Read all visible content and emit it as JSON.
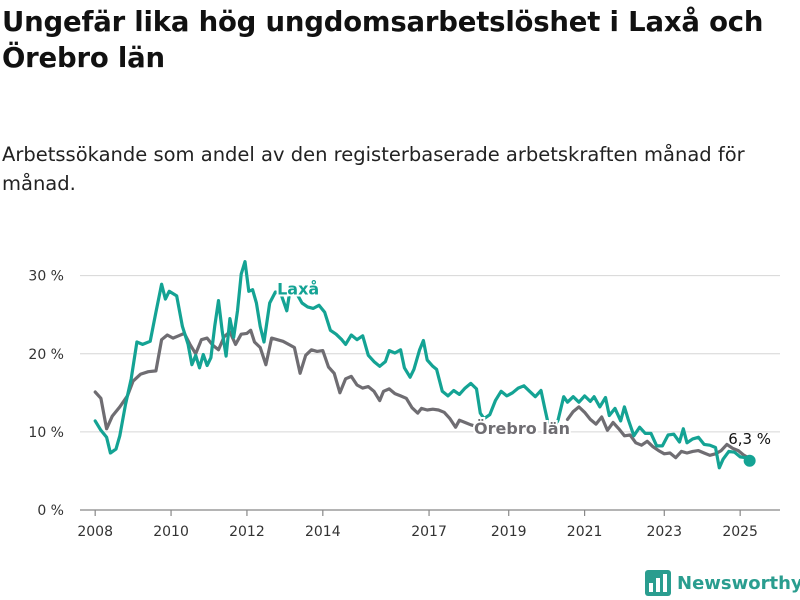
{
  "header": {
    "title": "Ungefär lika hög ungdomsarbetslöshet i Laxå och Örebro län",
    "subtitle": "Arbetssökande som andel av den registerbaserade arbetskraften månad för månad."
  },
  "brand": {
    "name": "Newsworthy",
    "icon": "bar-chart-logo-icon",
    "color": "#2a9d8f"
  },
  "chart_data": {
    "type": "line",
    "title": "Ungefär lika hög ungdomsarbetslöshet i Laxå och Örebro län",
    "subtitle": "Arbetssökande som andel av den registerbaserade arbetskraften månad för månad.",
    "xlabel": "",
    "ylabel": "",
    "xlim": [
      2007.6,
      2026.05
    ],
    "ylim": [
      0,
      32
    ],
    "grid": true,
    "legend": "none",
    "x_ticks": [
      "2008",
      "2010",
      "2012",
      "2014",
      "2017",
      "2019",
      "2021",
      "2023",
      "2025"
    ],
    "x_tick_values": [
      2008,
      2010,
      2012,
      2014,
      2016.8,
      2018.9,
      2020.9,
      2023,
      2025
    ],
    "y_ticks": [
      "0 %",
      "10 %",
      "20 %",
      "30 %"
    ],
    "y_tick_values": [
      0,
      10,
      20,
      30
    ],
    "series": [
      {
        "name": "Laxå",
        "color": "#14a394",
        "label": "Laxå",
        "label_at": [
          2013.35,
          27.6
        ],
        "points": [
          [
            2008.0,
            11.4
          ],
          [
            2008.15,
            10.2
          ],
          [
            2008.3,
            9.3
          ],
          [
            2008.4,
            7.3
          ],
          [
            2008.55,
            7.8
          ],
          [
            2008.65,
            9.5
          ],
          [
            2008.8,
            13.5
          ],
          [
            2008.95,
            16.8
          ],
          [
            2009.1,
            21.5
          ],
          [
            2009.25,
            21.2
          ],
          [
            2009.45,
            21.6
          ],
          [
            2009.6,
            25.3
          ],
          [
            2009.75,
            28.9
          ],
          [
            2009.85,
            27.0
          ],
          [
            2009.95,
            28.0
          ],
          [
            2010.15,
            27.4
          ],
          [
            2010.3,
            23.5
          ],
          [
            2010.45,
            21.2
          ],
          [
            2010.55,
            18.6
          ],
          [
            2010.65,
            19.8
          ],
          [
            2010.75,
            18.2
          ],
          [
            2010.85,
            19.9
          ],
          [
            2010.95,
            18.5
          ],
          [
            2011.05,
            19.5
          ],
          [
            2011.15,
            23.5
          ],
          [
            2011.25,
            26.8
          ],
          [
            2011.35,
            22.8
          ],
          [
            2011.45,
            19.7
          ],
          [
            2011.55,
            24.5
          ],
          [
            2011.65,
            22.1
          ],
          [
            2011.75,
            25.5
          ],
          [
            2011.85,
            30.2
          ],
          [
            2011.95,
            31.8
          ],
          [
            2012.05,
            28.0
          ],
          [
            2012.15,
            28.2
          ],
          [
            2012.25,
            26.5
          ],
          [
            2012.35,
            23.5
          ],
          [
            2012.45,
            21.5
          ],
          [
            2012.6,
            26.5
          ],
          [
            2012.75,
            27.9
          ],
          [
            2012.9,
            27.6
          ],
          [
            2013.05,
            25.5
          ],
          [
            2013.15,
            28.6
          ],
          [
            2013.3,
            27.8
          ],
          [
            2013.45,
            26.5
          ],
          [
            2013.6,
            26.0
          ],
          [
            2013.75,
            25.8
          ],
          [
            2013.9,
            26.2
          ],
          [
            2014.05,
            25.3
          ],
          [
            2014.2,
            23.0
          ],
          [
            2014.35,
            22.5
          ],
          [
            2014.5,
            21.8
          ],
          [
            2014.6,
            21.2
          ],
          [
            2014.75,
            22.4
          ],
          [
            2014.9,
            21.8
          ],
          [
            2015.05,
            22.3
          ],
          [
            2015.2,
            19.8
          ],
          [
            2015.35,
            19.0
          ],
          [
            2015.5,
            18.4
          ],
          [
            2015.65,
            19.0
          ],
          [
            2015.75,
            20.4
          ],
          [
            2015.9,
            20.1
          ],
          [
            2016.05,
            20.5
          ],
          [
            2016.15,
            18.2
          ],
          [
            2016.3,
            17.0
          ],
          [
            2016.4,
            18.0
          ],
          [
            2016.55,
            20.5
          ],
          [
            2016.65,
            21.7
          ],
          [
            2016.75,
            19.2
          ],
          [
            2016.9,
            18.4
          ],
          [
            2017.0,
            18.0
          ],
          [
            2017.15,
            15.2
          ],
          [
            2017.3,
            14.6
          ],
          [
            2017.45,
            15.3
          ],
          [
            2017.6,
            14.8
          ],
          [
            2017.75,
            15.6
          ],
          [
            2017.9,
            16.2
          ],
          [
            2018.05,
            15.5
          ],
          [
            2018.15,
            12.4
          ],
          [
            2018.25,
            11.7
          ],
          [
            2018.4,
            12.2
          ],
          [
            2018.55,
            14.0
          ],
          [
            2018.7,
            15.2
          ],
          [
            2018.85,
            14.6
          ],
          [
            2019.0,
            15.0
          ],
          [
            2019.15,
            15.6
          ],
          [
            2019.3,
            15.9
          ],
          [
            2019.45,
            15.2
          ],
          [
            2019.6,
            14.5
          ],
          [
            2019.75,
            15.3
          ],
          [
            2019.85,
            13.0
          ],
          [
            2019.95,
            10.8
          ],
          [
            2020.1,
            10.5
          ],
          [
            2020.2,
            11.5
          ],
          [
            2020.35,
            14.5
          ],
          [
            2020.45,
            13.8
          ],
          [
            2020.6,
            14.5
          ],
          [
            2020.75,
            13.8
          ],
          [
            2020.9,
            14.6
          ],
          [
            2021.05,
            13.9
          ],
          [
            2021.15,
            14.5
          ],
          [
            2021.3,
            13.2
          ],
          [
            2021.45,
            14.4
          ],
          [
            2021.55,
            12.1
          ],
          [
            2021.7,
            13.0
          ],
          [
            2021.85,
            11.4
          ],
          [
            2021.95,
            13.2
          ],
          [
            2022.05,
            11.6
          ],
          [
            2022.2,
            9.5
          ],
          [
            2022.35,
            10.6
          ],
          [
            2022.5,
            9.8
          ],
          [
            2022.65,
            9.8
          ],
          [
            2022.8,
            8.2
          ],
          [
            2022.95,
            8.2
          ],
          [
            2023.1,
            9.6
          ],
          [
            2023.25,
            9.7
          ],
          [
            2023.4,
            8.7
          ],
          [
            2023.5,
            10.4
          ],
          [
            2023.6,
            8.6
          ],
          [
            2023.75,
            9.1
          ],
          [
            2023.9,
            9.3
          ],
          [
            2024.05,
            8.4
          ],
          [
            2024.2,
            8.3
          ],
          [
            2024.35,
            8.0
          ],
          [
            2024.45,
            5.4
          ],
          [
            2024.55,
            6.5
          ],
          [
            2024.7,
            7.5
          ],
          [
            2024.85,
            7.4
          ],
          [
            2025.0,
            6.8
          ],
          [
            2025.15,
            6.7
          ],
          [
            2025.25,
            6.3
          ]
        ]
      },
      {
        "name": "Örebro län",
        "color": "#6f6d72",
        "label": "Örebro län",
        "label_at": [
          2019.25,
          9.7
        ],
        "points": [
          [
            2008.0,
            15.1
          ],
          [
            2008.15,
            14.3
          ],
          [
            2008.3,
            10.4
          ],
          [
            2008.45,
            12.0
          ],
          [
            2008.65,
            13.2
          ],
          [
            2008.85,
            14.6
          ],
          [
            2009.0,
            16.5
          ],
          [
            2009.2,
            17.4
          ],
          [
            2009.4,
            17.7
          ],
          [
            2009.6,
            17.8
          ],
          [
            2009.75,
            21.8
          ],
          [
            2009.9,
            22.4
          ],
          [
            2010.05,
            22.0
          ],
          [
            2010.2,
            22.3
          ],
          [
            2010.35,
            22.6
          ],
          [
            2010.5,
            21.2
          ],
          [
            2010.65,
            20.0
          ],
          [
            2010.8,
            21.8
          ],
          [
            2010.95,
            22.0
          ],
          [
            2011.1,
            21.1
          ],
          [
            2011.25,
            20.5
          ],
          [
            2011.4,
            22.2
          ],
          [
            2011.55,
            22.8
          ],
          [
            2011.7,
            21.2
          ],
          [
            2011.85,
            22.5
          ],
          [
            2012.0,
            22.6
          ],
          [
            2012.1,
            23.0
          ],
          [
            2012.2,
            21.5
          ],
          [
            2012.35,
            20.8
          ],
          [
            2012.5,
            18.6
          ],
          [
            2012.65,
            22.0
          ],
          [
            2012.8,
            21.8
          ],
          [
            2012.95,
            21.6
          ],
          [
            2013.1,
            21.2
          ],
          [
            2013.25,
            20.8
          ],
          [
            2013.4,
            17.5
          ],
          [
            2013.55,
            19.8
          ],
          [
            2013.7,
            20.5
          ],
          [
            2013.85,
            20.3
          ],
          [
            2014.0,
            20.4
          ],
          [
            2014.15,
            18.3
          ],
          [
            2014.3,
            17.5
          ],
          [
            2014.45,
            15.0
          ],
          [
            2014.6,
            16.8
          ],
          [
            2014.75,
            17.1
          ],
          [
            2014.9,
            16.0
          ],
          [
            2015.05,
            15.6
          ],
          [
            2015.2,
            15.8
          ],
          [
            2015.35,
            15.2
          ],
          [
            2015.5,
            14.0
          ],
          [
            2015.6,
            15.2
          ],
          [
            2015.75,
            15.5
          ],
          [
            2015.9,
            14.9
          ],
          [
            2016.05,
            14.6
          ],
          [
            2016.2,
            14.3
          ],
          [
            2016.35,
            13.1
          ],
          [
            2016.5,
            12.4
          ],
          [
            2016.6,
            13.0
          ],
          [
            2016.75,
            12.8
          ],
          [
            2016.9,
            12.9
          ],
          [
            2017.05,
            12.8
          ],
          [
            2017.2,
            12.5
          ],
          [
            2017.35,
            11.7
          ],
          [
            2017.5,
            10.6
          ],
          [
            2017.6,
            11.5
          ],
          [
            2017.75,
            11.2
          ],
          [
            2017.9,
            10.9
          ],
          [
            2018.05,
            10.7
          ]
        ]
      },
      {
        "name": "Örebro län",
        "color": "#6f6d72",
        "points": [
          [
            2020.45,
            11.6
          ],
          [
            2020.6,
            12.6
          ],
          [
            2020.75,
            13.2
          ],
          [
            2020.9,
            12.5
          ],
          [
            2021.05,
            11.6
          ],
          [
            2021.2,
            11.0
          ],
          [
            2021.35,
            11.9
          ],
          [
            2021.5,
            10.2
          ],
          [
            2021.65,
            11.2
          ],
          [
            2021.8,
            10.4
          ],
          [
            2021.95,
            9.5
          ],
          [
            2022.1,
            9.6
          ],
          [
            2022.25,
            8.6
          ],
          [
            2022.4,
            8.3
          ],
          [
            2022.55,
            8.8
          ],
          [
            2022.7,
            8.1
          ],
          [
            2022.85,
            7.6
          ],
          [
            2023.0,
            7.2
          ],
          [
            2023.15,
            7.3
          ],
          [
            2023.3,
            6.7
          ],
          [
            2023.45,
            7.5
          ],
          [
            2023.6,
            7.3
          ],
          [
            2023.75,
            7.5
          ],
          [
            2023.9,
            7.6
          ],
          [
            2024.05,
            7.3
          ],
          [
            2024.2,
            7.0
          ],
          [
            2024.35,
            7.2
          ],
          [
            2024.5,
            7.6
          ],
          [
            2024.65,
            8.4
          ],
          [
            2024.8,
            7.9
          ],
          [
            2024.95,
            7.6
          ],
          [
            2025.1,
            7.0
          ],
          [
            2025.25,
            6.6
          ]
        ]
      }
    ],
    "annotation": {
      "text": "6,3 %",
      "x": 2025.25,
      "y": 6.3
    }
  }
}
